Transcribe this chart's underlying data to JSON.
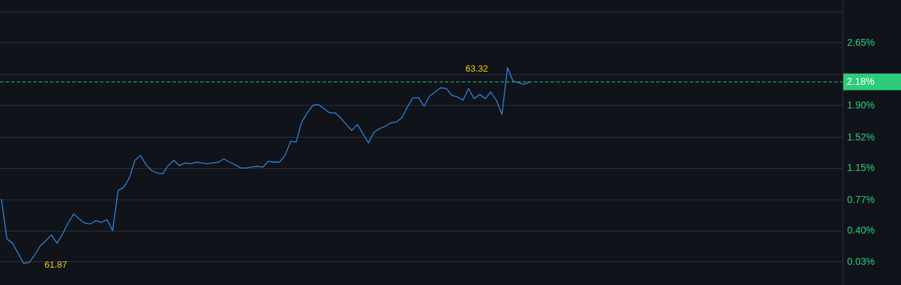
{
  "chart_data": {
    "type": "line",
    "categories": [
      null,
      null,
      null,
      null,
      null,
      null,
      null,
      null,
      null,
      null,
      null,
      null,
      null,
      null,
      null,
      null,
      null,
      null,
      null,
      null,
      null,
      null,
      null,
      null,
      null,
      null,
      null,
      null,
      null,
      null,
      null,
      null,
      null,
      null,
      null,
      null,
      null,
      null,
      null,
      null,
      null,
      null,
      null,
      null,
      null,
      null,
      null,
      null,
      null,
      null,
      null,
      null,
      null,
      null,
      null,
      null,
      null,
      null,
      null,
      null,
      null,
      null,
      null,
      null,
      null,
      null,
      null,
      null,
      null,
      null,
      null,
      null,
      null,
      null,
      null,
      null,
      null,
      null,
      null,
      null,
      null,
      null,
      null,
      null,
      null,
      null,
      null,
      null,
      null,
      null,
      null,
      null,
      null,
      null,
      null,
      null,
      null,
      null,
      null,
      null,
      null,
      null,
      null,
      null,
      null,
      null,
      null,
      null,
      null,
      null,
      null,
      null,
      null,
      null,
      null,
      null,
      null,
      null,
      null,
      null,
      null,
      null,
      null,
      null,
      null,
      null,
      null,
      null,
      null,
      null,
      null,
      null,
      null,
      null,
      null,
      null,
      null,
      null,
      null,
      null,
      null,
      null,
      null,
      null,
      null,
      null,
      null,
      null,
      null,
      null,
      null,
      null
    ],
    "series": [
      {
        "color": "#2f8ae0",
        "values": [
          0.78,
          0.3,
          0.25,
          0.13,
          0.01,
          0.02,
          0.11,
          0.22,
          0.28,
          0.35,
          0.25,
          0.36,
          0.49,
          0.6,
          0.54,
          0.49,
          0.48,
          0.52,
          0.5,
          0.53,
          0.4,
          0.88,
          0.92,
          1.03,
          1.24,
          1.3,
          1.19,
          1.12,
          1.09,
          1.08,
          1.18,
          1.24,
          1.18,
          1.21,
          1.2,
          1.22,
          1.21,
          1.2,
          1.21,
          1.22,
          1.26,
          1.22,
          1.19,
          1.15,
          1.15,
          1.16,
          1.17,
          1.16,
          1.23,
          1.22,
          1.22,
          1.3,
          1.47,
          1.46,
          1.7,
          1.81,
          1.9,
          1.91,
          1.86,
          1.81,
          1.81,
          1.75,
          1.67,
          1.6,
          1.67,
          1.56,
          1.45,
          1.58,
          1.62,
          1.65,
          1.69,
          1.7,
          1.75,
          1.88,
          1.99,
          1.99,
          1.89,
          2.01,
          2.06,
          2.11,
          2.1,
          2.02,
          2.0,
          1.96,
          2.1,
          1.98,
          2.03,
          1.98,
          2.06,
          1.96,
          1.79,
          2.35,
          2.19,
          2.17,
          2.15,
          2.18,
          null,
          null,
          null,
          null,
          null,
          null,
          null,
          null,
          null,
          null,
          null,
          null,
          null,
          null,
          null,
          null,
          null,
          null,
          null,
          null,
          null,
          null,
          null,
          null,
          null,
          null,
          null,
          null,
          null,
          null,
          null,
          null,
          null,
          null,
          null,
          null,
          null,
          null,
          null,
          null,
          null,
          null,
          null,
          null,
          null,
          null,
          null,
          null,
          null,
          null,
          null,
          null,
          null,
          null,
          null,
          null
        ]
      }
    ],
    "ylim": [
      -0.25,
      3.16
    ],
    "yticks": [
      {
        "value": 0.03,
        "label": "0.03%"
      },
      {
        "value": 0.4,
        "label": "0.40%"
      },
      {
        "value": 0.77,
        "label": "0.77%"
      },
      {
        "value": 1.15,
        "label": "1.15%"
      },
      {
        "value": 1.52,
        "label": "1.52%"
      },
      {
        "value": 1.9,
        "label": "1.90%"
      },
      {
        "value": 2.27,
        "label": null
      },
      {
        "value": 2.65,
        "label": "2.65%"
      },
      {
        "value": 3.02,
        "label": null
      }
    ],
    "tick_labels": "y",
    "grid": "y",
    "line_style": "solid",
    "ref_lines": [
      {
        "axis": "y",
        "value": 2.18,
        "label": "2.18%",
        "color": "#2ecc7a",
        "line_style": "dashed"
      }
    ],
    "annotations": [
      "61.87",
      "63.32"
    ]
  }
}
